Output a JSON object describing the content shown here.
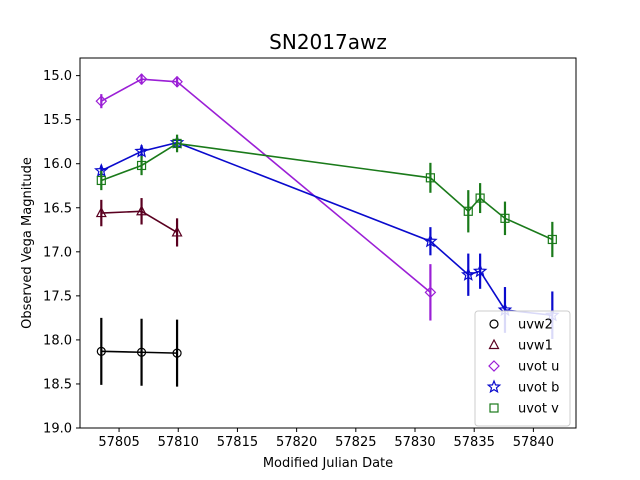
{
  "chart_data": {
    "type": "scatter",
    "title": "SN2017awz",
    "xlabel": "Modified Julian Date",
    "ylabel": "Observed Vega Magnitude",
    "xlim": [
      57801.7,
      57843.6
    ],
    "ylim": [
      19.0,
      14.8
    ],
    "y_inverted": true,
    "x_ticks": [
      57805,
      57810,
      57815,
      57820,
      57825,
      57830,
      57835,
      57840
    ],
    "y_ticks": [
      15.0,
      15.5,
      16.0,
      16.5,
      17.0,
      17.5,
      18.0,
      18.5,
      19.0
    ],
    "x_tick_labels": [
      "57805",
      "57810",
      "57815",
      "57820",
      "57825",
      "57830",
      "57835",
      "57840"
    ],
    "y_tick_labels": [
      "15.0",
      "15.5",
      "16.0",
      "16.5",
      "17.0",
      "17.5",
      "18.0",
      "18.5",
      "19.0"
    ],
    "grid": false,
    "legend_position": "lower-right",
    "series": [
      {
        "name": "uvw2",
        "marker": "circle",
        "color": "#000000",
        "x": [
          57803.5,
          57806.9,
          57809.9
        ],
        "y": [
          18.13,
          18.14,
          18.15
        ],
        "yerr": [
          0.38,
          0.38,
          0.38
        ]
      },
      {
        "name": "uvw1",
        "marker": "triangle",
        "color": "#5a0020",
        "x": [
          57803.5,
          57806.9,
          57809.9
        ],
        "y": [
          16.56,
          16.54,
          16.78
        ],
        "yerr": [
          0.15,
          0.15,
          0.16
        ]
      },
      {
        "name": "uvot u",
        "marker": "diamond",
        "color": "#9b1fd6",
        "x": [
          57803.5,
          57806.9,
          57809.9,
          57831.3
        ],
        "y": [
          15.29,
          15.04,
          15.07,
          17.46
        ],
        "yerr": [
          0.08,
          0.06,
          0.06,
          0.32
        ]
      },
      {
        "name": "uvot b",
        "marker": "star",
        "color": "#0a0acd",
        "x": [
          57803.5,
          57806.9,
          57809.9,
          57831.3,
          57834.5,
          57835.5,
          57837.6,
          57841.6
        ],
        "y": [
          16.08,
          15.86,
          15.76,
          16.88,
          17.26,
          17.22,
          17.66,
          17.72
        ],
        "yerr": [
          0.06,
          0.07,
          0.06,
          0.16,
          0.24,
          0.2,
          0.26,
          0.27
        ]
      },
      {
        "name": "uvot v",
        "marker": "square",
        "color": "#1a7a1a",
        "x": [
          57803.5,
          57806.9,
          57809.9,
          57831.3,
          57834.5,
          57835.5,
          57837.6,
          57841.6
        ],
        "y": [
          16.19,
          16.02,
          15.77,
          16.16,
          16.54,
          16.39,
          16.62,
          16.86
        ],
        "yerr": [
          0.11,
          0.11,
          0.1,
          0.17,
          0.24,
          0.17,
          0.19,
          0.2
        ]
      }
    ]
  }
}
